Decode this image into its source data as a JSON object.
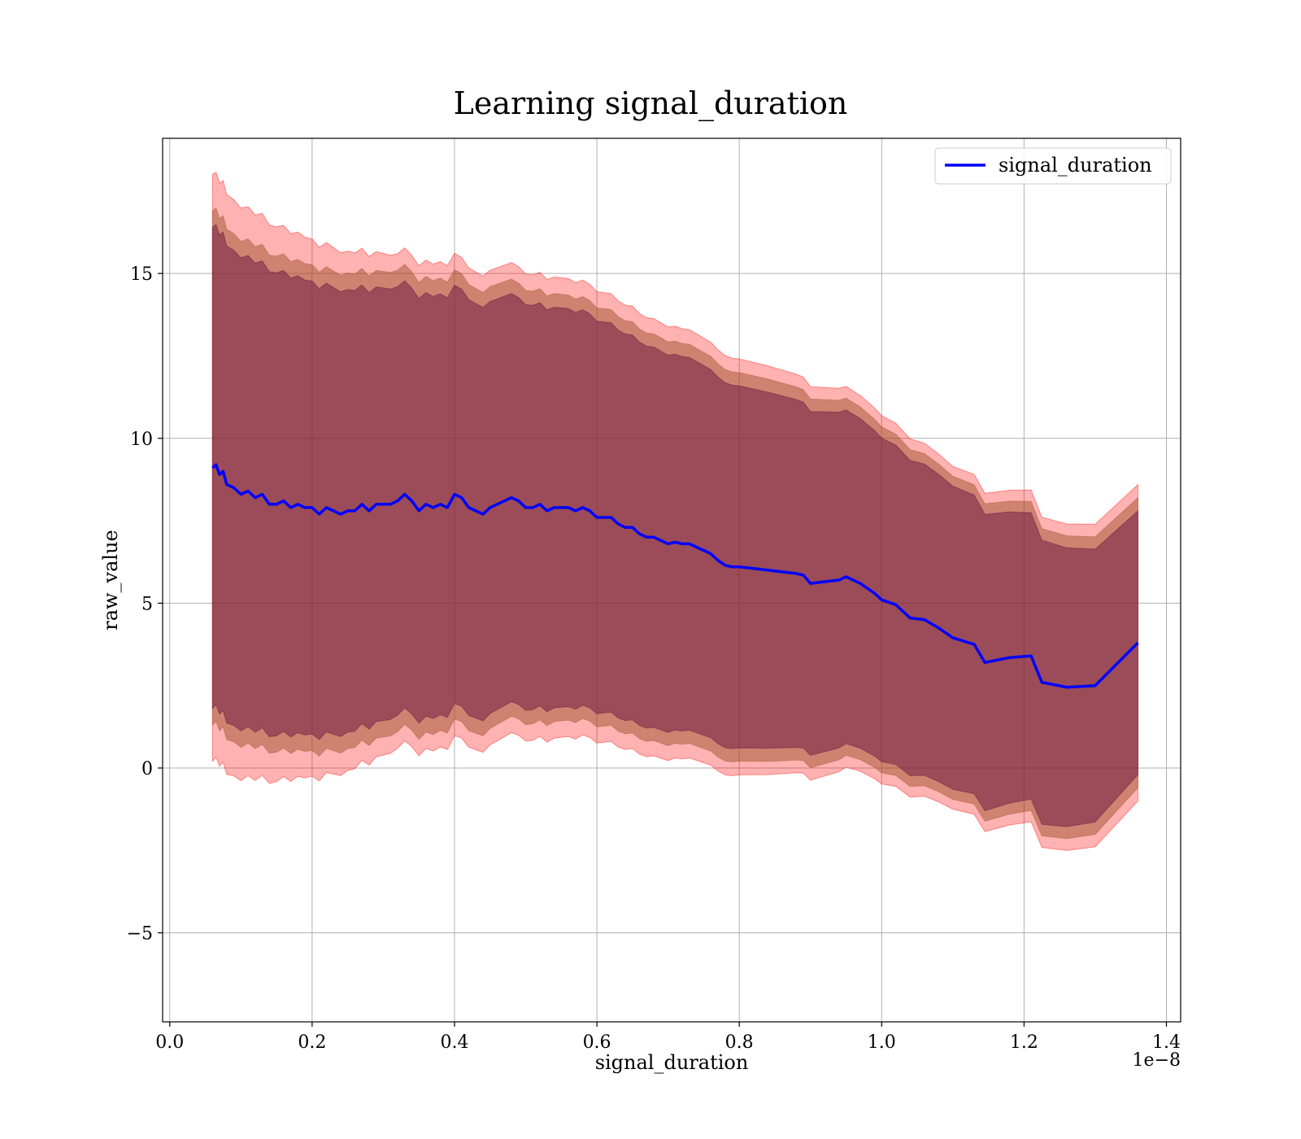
{
  "chart_data": {
    "type": "line",
    "title": "Learning signal_duration",
    "xlabel": "signal_duration",
    "ylabel": "raw_value",
    "x_offset_label": "1e−8",
    "xlim": [
      -0.01,
      1.42
    ],
    "ylim": [
      -7.7,
      19.1
    ],
    "x_ticks": [
      0.0,
      0.2,
      0.4,
      0.6,
      0.8,
      1.0,
      1.2,
      1.4
    ],
    "x_tick_labels": [
      "0.0",
      "0.2",
      "0.4",
      "0.6",
      "0.8",
      "1.0",
      "1.2",
      "1.4"
    ],
    "y_ticks": [
      -5,
      0,
      5,
      10,
      15
    ],
    "y_tick_labels": [
      "−5",
      "0",
      "5",
      "10",
      "15"
    ],
    "grid": true,
    "legend_position": "top-right",
    "colors": {
      "line": "#0000ff",
      "band_outer": "#ff0000",
      "band_middle": "#a0522d",
      "band_inner": "#5a0a3c"
    },
    "series": [
      {
        "name": "signal_duration",
        "x": [
          0.06,
          0.065,
          0.07,
          0.075,
          0.08,
          0.09,
          0.1,
          0.11,
          0.12,
          0.13,
          0.14,
          0.15,
          0.16,
          0.17,
          0.18,
          0.19,
          0.2,
          0.21,
          0.22,
          0.23,
          0.24,
          0.25,
          0.26,
          0.27,
          0.28,
          0.29,
          0.3,
          0.31,
          0.32,
          0.33,
          0.34,
          0.35,
          0.36,
          0.37,
          0.38,
          0.39,
          0.4,
          0.41,
          0.42,
          0.43,
          0.44,
          0.45,
          0.46,
          0.47,
          0.48,
          0.49,
          0.5,
          0.51,
          0.52,
          0.53,
          0.54,
          0.55,
          0.56,
          0.57,
          0.58,
          0.59,
          0.6,
          0.61,
          0.62,
          0.63,
          0.64,
          0.65,
          0.66,
          0.67,
          0.68,
          0.69,
          0.7,
          0.71,
          0.72,
          0.73,
          0.74,
          0.75,
          0.76,
          0.77,
          0.78,
          0.79,
          0.8,
          0.82,
          0.84,
          0.86,
          0.88,
          0.89,
          0.9,
          0.92,
          0.94,
          0.95,
          0.97,
          0.99,
          1.0,
          1.02,
          1.04,
          1.06,
          1.08,
          1.1,
          1.13,
          1.145,
          1.18,
          1.21,
          1.225,
          1.26,
          1.3,
          1.36
        ],
        "values": [
          9.1,
          9.2,
          8.9,
          9.0,
          8.6,
          8.5,
          8.3,
          8.4,
          8.2,
          8.3,
          8.0,
          8.0,
          8.1,
          7.9,
          8.0,
          7.9,
          7.9,
          7.7,
          7.9,
          7.8,
          7.7,
          7.8,
          7.8,
          8.0,
          7.8,
          8.0,
          8.0,
          8.0,
          8.1,
          8.3,
          8.1,
          7.8,
          8.0,
          7.9,
          8.0,
          7.9,
          8.3,
          8.2,
          7.9,
          7.8,
          7.7,
          7.9,
          8.0,
          8.1,
          8.2,
          8.1,
          7.9,
          7.9,
          8.0,
          7.8,
          7.9,
          7.9,
          7.9,
          7.8,
          7.9,
          7.8,
          7.6,
          7.6,
          7.6,
          7.4,
          7.3,
          7.3,
          7.1,
          7.0,
          7.0,
          6.9,
          6.8,
          6.85,
          6.8,
          6.8,
          6.7,
          6.6,
          6.5,
          6.3,
          6.15,
          6.1,
          6.1,
          6.05,
          6.0,
          5.95,
          5.9,
          5.85,
          5.6,
          5.65,
          5.7,
          5.8,
          5.6,
          5.3,
          5.1,
          4.95,
          4.55,
          4.5,
          4.25,
          3.95,
          3.75,
          3.2,
          3.35,
          3.4,
          2.6,
          2.45,
          2.5,
          3.8
        ]
      }
    ],
    "bands": [
      {
        "color": "#ff0000",
        "opacity": 0.3,
        "half_width": [
          8.9,
          7.5,
          6.9,
          6.2,
          5.2,
          4.8
        ]
      },
      {
        "color": "#a0522d",
        "opacity": 0.5,
        "half_width": [
          7.8,
          7.0,
          6.4,
          5.8,
          4.9,
          4.4
        ]
      },
      {
        "color": "#5a0a3c",
        "opacity": 0.45,
        "half_width": [
          7.3,
          6.5,
          6.0,
          5.4,
          4.6,
          4.0
        ]
      }
    ]
  }
}
